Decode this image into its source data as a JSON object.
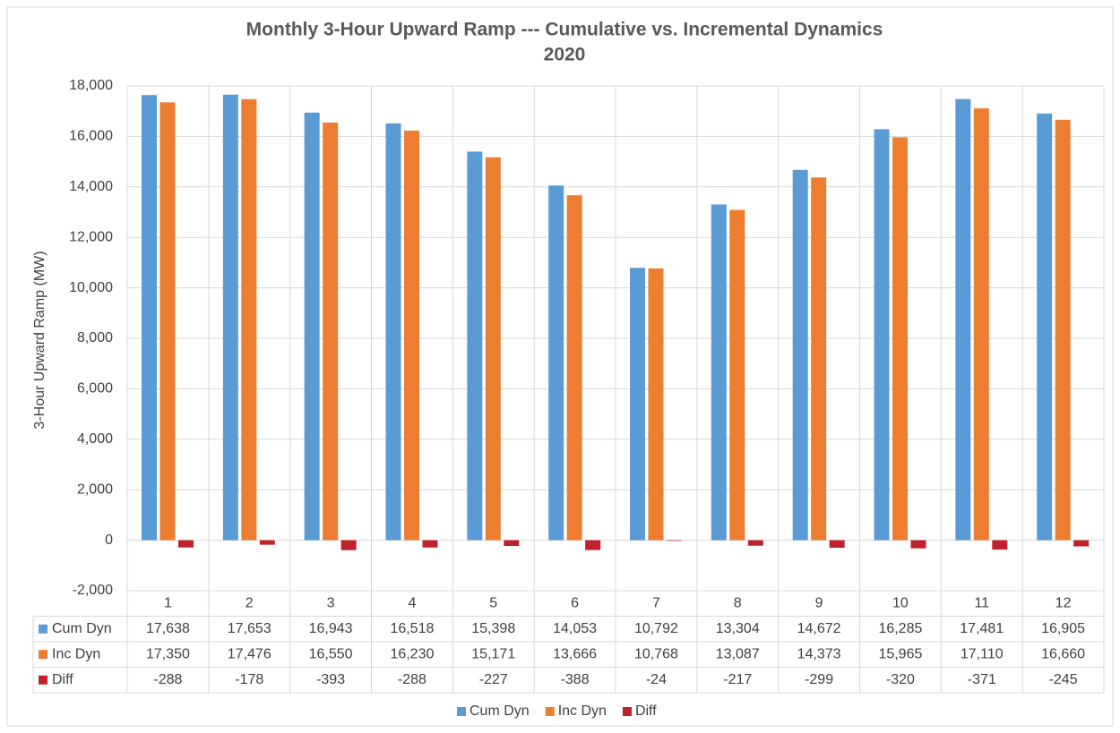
{
  "chart_data": {
    "type": "bar",
    "title": "Monthly 3-Hour Upward Ramp --- Cumulative vs. Incremental Dynamics",
    "subtitle": "2020",
    "y_label": "3-Hour Upward Ramp (MW)",
    "categories": [
      "1",
      "2",
      "3",
      "4",
      "5",
      "6",
      "7",
      "8",
      "9",
      "10",
      "11",
      "12"
    ],
    "series": [
      {
        "name": "Cum Dyn",
        "color": "#5b9bd5",
        "values": [
          17638,
          17653,
          16943,
          16518,
          15398,
          14053,
          10792,
          13304,
          14672,
          16285,
          17481,
          16905
        ],
        "value_labels": [
          "17,638",
          "17,653",
          "16,943",
          "16,518",
          "15,398",
          "14,053",
          "10,792",
          "13,304",
          "14,672",
          "16,285",
          "17,481",
          "16,905"
        ]
      },
      {
        "name": "Inc Dyn",
        "color": "#ed7d31",
        "values": [
          17350,
          17476,
          16550,
          16230,
          15171,
          13666,
          10768,
          13087,
          14373,
          15965,
          17110,
          16660
        ],
        "value_labels": [
          "17,350",
          "17,476",
          "16,550",
          "16,230",
          "15,171",
          "13,666",
          "10,768",
          "13,087",
          "14,373",
          "15,965",
          "17,110",
          "16,660"
        ]
      },
      {
        "name": "Diff",
        "color": "#c0202a",
        "values": [
          -288,
          -178,
          -393,
          -288,
          -227,
          -388,
          -24,
          -217,
          -299,
          -320,
          -371,
          -245
        ]
      }
    ],
    "ylim": [
      -2000,
      18000
    ],
    "yticks": [
      {
        "value": -2000,
        "label": "-2,000"
      },
      0,
      {
        "value": 2000,
        "label": "2,000"
      },
      {
        "value": 4000,
        "label": "4,000"
      },
      {
        "value": 6000,
        "label": "6,000"
      },
      {
        "value": 8000,
        "label": "8,000"
      },
      {
        "value": 10000,
        "label": "10,000"
      },
      {
        "value": 12000,
        "label": "12,000"
      },
      {
        "value": 14000,
        "label": "14,000"
      },
      {
        "value": 16000,
        "label": "16,000"
      },
      {
        "value": 18000,
        "label": "18,000"
      }
    ],
    "grid": true,
    "legend": "bottom"
  }
}
